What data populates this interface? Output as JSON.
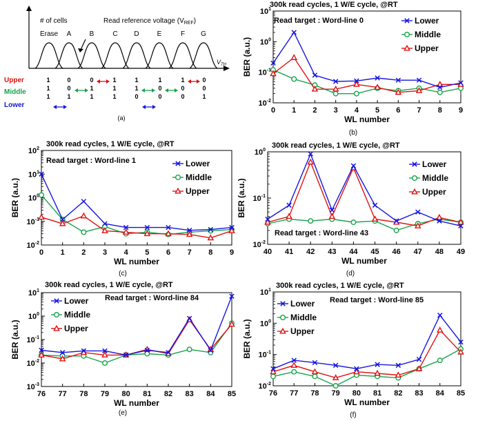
{
  "colors": {
    "lower": "#1515e0",
    "middle": "#16a34a",
    "upper": "#e01010",
    "axis": "#000000"
  },
  "diagram_a": {
    "yaxis_label": "# of cells",
    "xaxis_label": "Read reference voltage (V",
    "xaxis_label_sub": "REF",
    "xaxis_label_end": ")",
    "vth_label": "V",
    "vth_sub": "TH",
    "states": [
      "Erase",
      "A",
      "B",
      "C",
      "D",
      "E",
      "F",
      "G"
    ],
    "row_labels": {
      "upper": "Upper",
      "middle": "Middle",
      "lower": "Lower"
    },
    "upper_bits": [
      "1",
      "0",
      "0",
      "1",
      "1",
      "1",
      "1",
      "0"
    ],
    "middle_bits": [
      "1",
      "0",
      "1",
      "1",
      "1",
      "0",
      "0",
      "0"
    ],
    "lower_bits": [
      "1",
      "1",
      "1",
      "1",
      "0",
      "0",
      "0",
      "1"
    ],
    "caption": "(a)"
  },
  "chart_data": [
    {
      "id": "b",
      "type": "line",
      "caption": "(b)",
      "title": "300k read cycles, 1 W/E cycle, @RT",
      "annotation": "Read target : Word-line 0",
      "xlabel": "WL number",
      "ylabel": "BER (a.u.)",
      "x": [
        "0",
        "1",
        "2",
        "3",
        "4",
        "5",
        "6",
        "7",
        "8",
        "9"
      ],
      "yscale": "log",
      "ylim_exp": [
        -2,
        1
      ],
      "ytick_labels": [
        "10",
        "10",
        "10",
        "10"
      ],
      "ytick_exps": [
        "-2",
        "-1",
        "0",
        "1"
      ],
      "legend_position": "top-right",
      "series": [
        {
          "name": "Lower",
          "marker": "x",
          "values": [
            0.2,
            2.0,
            0.08,
            0.05,
            0.052,
            0.065,
            0.055,
            0.055,
            0.032,
            0.045
          ]
        },
        {
          "name": "Middle",
          "marker": "circle",
          "values": [
            0.12,
            0.06,
            0.038,
            0.02,
            0.02,
            0.03,
            0.025,
            0.03,
            0.022,
            0.03
          ]
        },
        {
          "name": "Upper",
          "marker": "triangle",
          "values": [
            0.09,
            0.3,
            0.028,
            0.028,
            0.04,
            0.032,
            0.022,
            0.025,
            0.04,
            0.04
          ]
        }
      ]
    },
    {
      "id": "c",
      "type": "line",
      "caption": "(c)",
      "title": "300k read cycles, 1 W/E cycle, @RT",
      "annotation": "Read target : Word-line 1",
      "xlabel": "WL number",
      "ylabel": "BER (a.u.)",
      "x": [
        "0",
        "1",
        "2",
        "3",
        "4",
        "5",
        "6",
        "7",
        "8",
        "9"
      ],
      "yscale": "log",
      "ylim_exp": [
        -2,
        2
      ],
      "ytick_labels": [
        "10",
        "10",
        "10",
        "10",
        "10"
      ],
      "ytick_exps": [
        "-2",
        "-1",
        "0",
        "1",
        "2"
      ],
      "legend_position": "top-right",
      "series": [
        {
          "name": "Lower",
          "marker": "x",
          "values": [
            10,
            0.12,
            0.7,
            0.08,
            0.055,
            0.055,
            0.055,
            0.042,
            0.045,
            0.055
          ]
        },
        {
          "name": "Middle",
          "marker": "circle",
          "values": [
            1.3,
            0.12,
            0.035,
            0.06,
            0.03,
            0.035,
            0.028,
            0.035,
            0.04,
            0.045
          ]
        },
        {
          "name": "Upper",
          "marker": "triangle",
          "values": [
            0.15,
            0.08,
            0.17,
            0.04,
            0.035,
            0.03,
            0.03,
            0.028,
            0.02,
            0.04
          ]
        }
      ]
    },
    {
      "id": "d",
      "type": "line",
      "caption": "(d)",
      "title": "300k read cycles, 1 W/E cycle, @RT",
      "annotation": "Read target : Word-line 43",
      "xlabel": "WL number",
      "ylabel": "BER (a.u.)",
      "x": [
        "40",
        "41",
        "42",
        "43",
        "44",
        "45",
        "46",
        "47",
        "48",
        "49"
      ],
      "yscale": "log",
      "ylim_exp": [
        -2,
        0
      ],
      "ytick_labels": [
        "10",
        "10",
        "10"
      ],
      "ytick_exps": [
        "-2",
        "-1",
        "0"
      ],
      "legend_position": "top-right",
      "series": [
        {
          "name": "Lower",
          "marker": "x",
          "values": [
            0.035,
            0.07,
            0.9,
            0.055,
            0.5,
            0.07,
            0.032,
            0.05,
            0.032,
            0.025
          ]
        },
        {
          "name": "Middle",
          "marker": "circle",
          "values": [
            0.028,
            0.035,
            0.032,
            0.035,
            0.03,
            0.032,
            0.02,
            0.028,
            0.035,
            0.03
          ]
        },
        {
          "name": "Upper",
          "marker": "triangle",
          "values": [
            0.03,
            0.04,
            0.6,
            0.04,
            0.45,
            0.035,
            0.03,
            0.025,
            0.038,
            0.03
          ]
        }
      ]
    },
    {
      "id": "e",
      "type": "line",
      "caption": "(e)",
      "title": "300k read cycles, 1 W/E cycle, @RT",
      "annotation": "Read target : Word-line 84",
      "xlabel": "WL number",
      "ylabel": "BER (a.u.)",
      "x": [
        "76",
        "77",
        "78",
        "79",
        "80",
        "81",
        "82",
        "83",
        "84",
        "85"
      ],
      "yscale": "log",
      "ylim_exp": [
        -3,
        1
      ],
      "ytick_labels": [
        "10",
        "10",
        "10",
        "10",
        "10"
      ],
      "ytick_exps": [
        "-3",
        "-2",
        "-1",
        "0",
        "1"
      ],
      "legend_position": "top-left",
      "series": [
        {
          "name": "Lower",
          "marker": "x",
          "values": [
            0.035,
            0.028,
            0.033,
            0.033,
            0.022,
            0.035,
            0.028,
            0.8,
            0.035,
            7
          ]
        },
        {
          "name": "Middle",
          "marker": "circle",
          "values": [
            0.022,
            0.02,
            0.02,
            0.01,
            0.022,
            0.025,
            0.022,
            0.038,
            0.028,
            0.5
          ]
        },
        {
          "name": "Upper",
          "marker": "triangle",
          "values": [
            0.022,
            0.015,
            0.028,
            0.022,
            0.022,
            0.038,
            0.025,
            0.7,
            0.038,
            0.45
          ]
        }
      ]
    },
    {
      "id": "f",
      "type": "line",
      "caption": "(f)",
      "title": "300k read cycles, 1 W/E cycle, @RT",
      "annotation": "Read target : Word-line 85",
      "xlabel": "WL number",
      "ylabel": "BER (a.u.)",
      "x": [
        "76",
        "77",
        "78",
        "79",
        "80",
        "81",
        "82",
        "83",
        "84",
        "85"
      ],
      "yscale": "log",
      "ylim_exp": [
        -2,
        1
      ],
      "ytick_labels": [
        "10",
        "10",
        "10",
        "10"
      ],
      "ytick_exps": [
        "-2",
        "-1",
        "0",
        "1"
      ],
      "legend_position": "top-left",
      "series": [
        {
          "name": "Lower",
          "marker": "x",
          "values": [
            0.035,
            0.065,
            0.055,
            0.045,
            0.035,
            0.048,
            0.045,
            0.07,
            1.8,
            0.25
          ]
        },
        {
          "name": "Middle",
          "marker": "circle",
          "values": [
            0.02,
            0.028,
            0.02,
            0.01,
            0.022,
            0.02,
            0.018,
            0.035,
            0.065,
            0.15
          ]
        },
        {
          "name": "Upper",
          "marker": "triangle",
          "values": [
            0.028,
            0.045,
            0.028,
            0.018,
            0.028,
            0.025,
            0.022,
            0.035,
            0.6,
            0.12
          ]
        }
      ]
    }
  ]
}
